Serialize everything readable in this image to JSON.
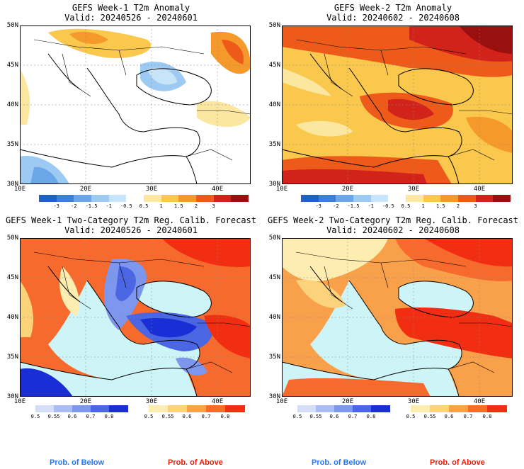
{
  "panels": [
    {
      "title": "GEFS Week-1 T2m Anomaly",
      "valid": "Valid: 20240526 - 20240601"
    },
    {
      "title": "GEFS Week-2 T2m Anomaly",
      "valid": "Valid: 20240602 - 20240608"
    },
    {
      "title": "GEFS Week-1 Two-Category T2m Reg. Calib. Forecast",
      "valid": "Valid: 20240526 - 20240601"
    },
    {
      "title": "GEFS Week-2 Two-Category T2m Reg. Calib. Forecast",
      "valid": "Valid: 20240602 - 20240608"
    }
  ],
  "axes": {
    "lat_labels": [
      "50N",
      "45N",
      "40N",
      "35N",
      "30N"
    ],
    "lon_labels": [
      "10E",
      "20E",
      "30E",
      "40E"
    ]
  },
  "anomaly_colorbar": {
    "labels": [
      "-3",
      "-2",
      "-1.5",
      "-1",
      "-0.5",
      "0.5",
      "1",
      "1.5",
      "2",
      "3"
    ],
    "colors": [
      "#1f5fc8",
      "#3c7fd8",
      "#6aa6e8",
      "#9ccaf2",
      "#c8e4f8",
      "#ffffff",
      "#fbe7a0",
      "#f9c84c",
      "#f59a2a",
      "#ee5a1a",
      "#d2231a",
      "#9a0f0f"
    ]
  },
  "prob_colorbars": {
    "below": {
      "labels": [
        "0.5",
        "0.55",
        "0.6",
        "0.7",
        "0.8"
      ],
      "colors": [
        "#d4def8",
        "#a9bdf4",
        "#7d97ee",
        "#4a66e2",
        "#1a2ed6"
      ]
    },
    "above": {
      "labels": [
        "0.5",
        "0.55",
        "0.6",
        "0.7",
        "0.8"
      ],
      "colors": [
        "#fdedb0",
        "#fcd27a",
        "#f9a04a",
        "#f66a2e",
        "#f22e12"
      ]
    }
  },
  "footer": {
    "below_label": "Prob. of Below",
    "above_label": "Prob. of Above",
    "below_color": "#1e78ff",
    "above_color": "#e61e0a"
  },
  "map_colors": {
    "sea_prob": "#cdf4f6",
    "land_neutral": "#ffffff"
  }
}
